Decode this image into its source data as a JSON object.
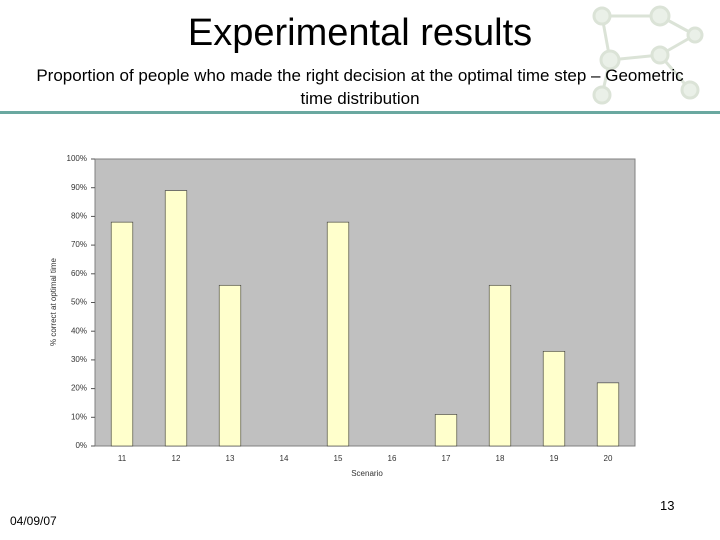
{
  "header": {
    "title": "Experimental results",
    "subtitle": "Proportion of people who made the right decision at the optimal time step – Geometric time distribution"
  },
  "chart_data": {
    "type": "bar",
    "x_label": "Scenario",
    "y_label": "% correct at optimal time",
    "categories": [
      "11",
      "12",
      "13",
      "14",
      "15",
      "16",
      "17",
      "18",
      "19",
      "20"
    ],
    "values": [
      78,
      89,
      56,
      0,
      78,
      0,
      11,
      56,
      33,
      22
    ],
    "color": "#ffffcc",
    "ylim": [
      0,
      100
    ],
    "yticks": [
      {
        "value": 0,
        "label": "0%"
      },
      {
        "value": 10,
        "label": "10%"
      },
      {
        "value": 20,
        "label": "20%"
      },
      {
        "value": 30,
        "label": "30%"
      },
      {
        "value": 40,
        "label": "40%"
      },
      {
        "value": 50,
        "label": "50%"
      },
      {
        "value": 60,
        "label": "60%"
      },
      {
        "value": 70,
        "label": "70%"
      },
      {
        "value": 80,
        "label": "80%"
      },
      {
        "value": 90,
        "label": "90%"
      },
      {
        "value": 100,
        "label": "100%"
      }
    ],
    "grid": false
  },
  "footer": {
    "date": "04/09/07",
    "page": "13"
  }
}
